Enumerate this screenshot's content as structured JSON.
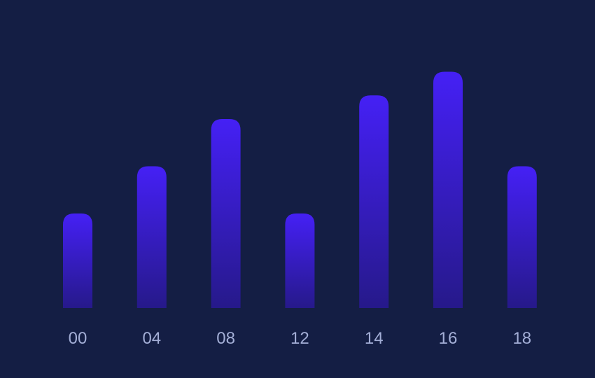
{
  "chart_data": {
    "type": "bar",
    "title": "",
    "xlabel": "",
    "ylabel": "",
    "categories": [
      "00",
      "04",
      "08",
      "12",
      "14",
      "16",
      "18"
    ],
    "values": [
      2,
      3,
      4,
      2,
      4.5,
      5,
      3
    ],
    "ylim": [
      0,
      6
    ],
    "grid": false,
    "legend": "none"
  },
  "colors": {
    "background": "#141e44",
    "bar_top": "#4520f5",
    "bar_bottom": "#26198a",
    "tick_label": "#a3aed6"
  }
}
